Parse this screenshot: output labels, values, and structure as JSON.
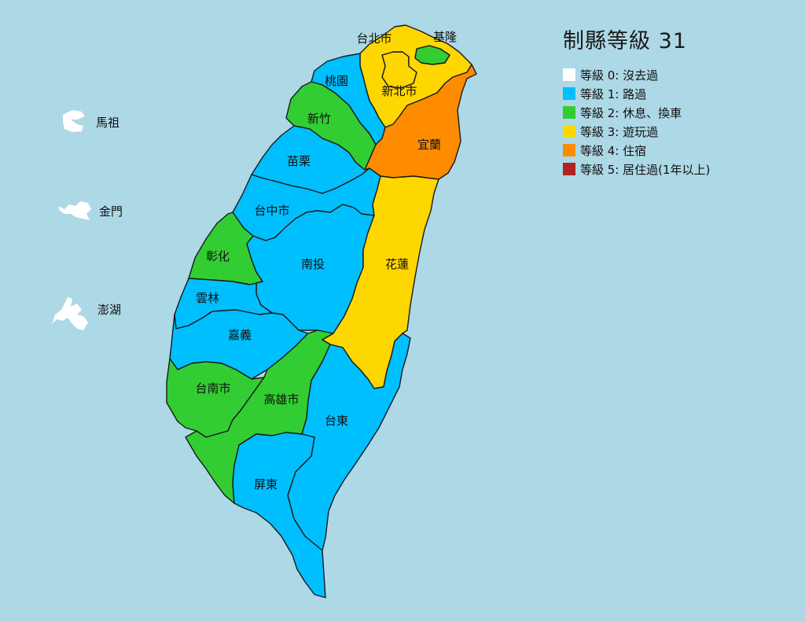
{
  "title": "制縣等級 31",
  "levels": [
    {
      "level": 0,
      "label": "等級 0: 沒去過",
      "color": "#FFFFFF"
    },
    {
      "level": 1,
      "label": "等級 1: 路過",
      "color": "#00BFFF"
    },
    {
      "level": 2,
      "label": "等級 2: 休息、換車",
      "color": "#32CD32"
    },
    {
      "level": 3,
      "label": "等級 3: 遊玩過",
      "color": "#FFD700"
    },
    {
      "level": 4,
      "label": "等級 4: 住宿",
      "color": "#FF8C00"
    },
    {
      "level": 5,
      "label": "等級 5: 居住過(1年以上)",
      "color": "#B22222"
    }
  ],
  "regions": [
    {
      "key": "taipei",
      "name": "台北市",
      "level": 3
    },
    {
      "key": "keelung",
      "name": "基隆",
      "level": 2
    },
    {
      "key": "newtaipei",
      "name": "新北市",
      "level": 3
    },
    {
      "key": "taoyuan",
      "name": "桃園",
      "level": 1
    },
    {
      "key": "hsinchu",
      "name": "新竹",
      "level": 2
    },
    {
      "key": "yilan",
      "name": "宜蘭",
      "level": 4
    },
    {
      "key": "miaoli",
      "name": "苗栗",
      "level": 1
    },
    {
      "key": "taichung",
      "name": "台中市",
      "level": 1
    },
    {
      "key": "changhua",
      "name": "彰化",
      "level": 2
    },
    {
      "key": "nantou",
      "name": "南投",
      "level": 1
    },
    {
      "key": "hualien",
      "name": "花蓮",
      "level": 3
    },
    {
      "key": "yunlin",
      "name": "雲林",
      "level": 1
    },
    {
      "key": "chiayi",
      "name": "嘉義",
      "level": 1
    },
    {
      "key": "tainan",
      "name": "台南市",
      "level": 2
    },
    {
      "key": "kaohsiung",
      "name": "高雄市",
      "level": 2
    },
    {
      "key": "taitung",
      "name": "台東",
      "level": 1
    },
    {
      "key": "pingtung",
      "name": "屏東",
      "level": 1
    },
    {
      "key": "matsu",
      "name": "馬祖",
      "level": 0
    },
    {
      "key": "kinmen",
      "name": "金門",
      "level": 0
    },
    {
      "key": "penghu",
      "name": "澎湖",
      "level": 0
    }
  ]
}
